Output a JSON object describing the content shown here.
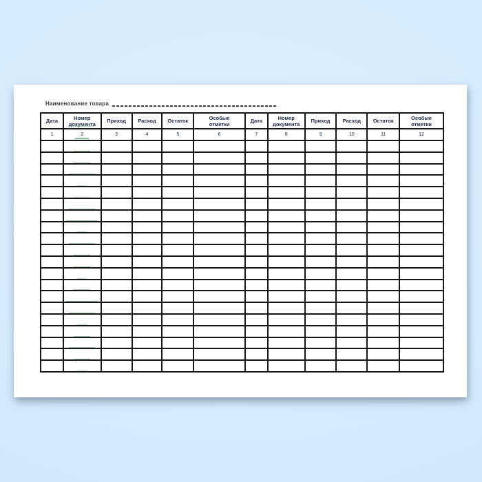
{
  "scene": {
    "background_color": "#d6ebfc",
    "background_edge_color": "#cde4f8",
    "paper_color": "#ffffff"
  },
  "form": {
    "product_name_label": "Наименование товара",
    "product_name_value": "",
    "columns": [
      {
        "label": "Дата",
        "number": "1"
      },
      {
        "label": "Номер\nдокумента",
        "number": "2"
      },
      {
        "label": "Приход",
        "number": "3"
      },
      {
        "label": "Расход",
        "number": "4"
      },
      {
        "label": "Остаток",
        "number": "5"
      },
      {
        "label": "Особые\nотметки",
        "number": "6"
      },
      {
        "label": "Дата",
        "number": "7"
      },
      {
        "label": "Номер\nдокумента",
        "number": "8"
      },
      {
        "label": "Приход",
        "number": "9"
      },
      {
        "label": "Расход",
        "number": "10"
      },
      {
        "label": "Остаток",
        "number": "11"
      },
      {
        "label": "Особые\nотметки",
        "number": "12"
      }
    ],
    "empty_row_count": 20
  },
  "style": {
    "border_color": "#161616",
    "header_text_color": "#1d2742",
    "label_text_color": "#3b3b3b",
    "artifact_green": "#127832"
  }
}
